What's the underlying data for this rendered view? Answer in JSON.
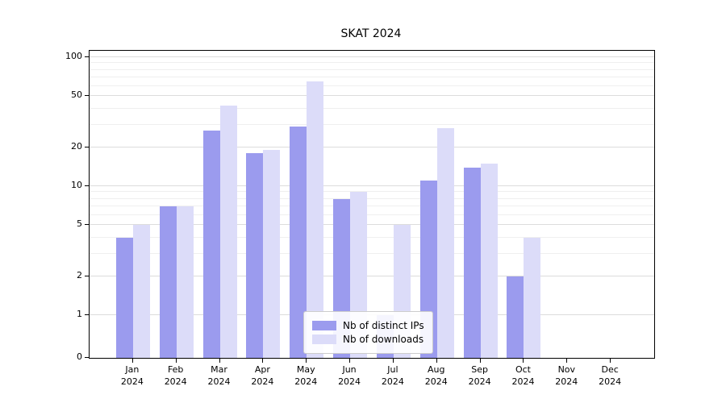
{
  "title": "SKAT 2024",
  "chart_data": {
    "type": "bar",
    "title": "SKAT 2024",
    "months": [
      "Jan",
      "Feb",
      "Mar",
      "Apr",
      "May",
      "Jun",
      "Jul",
      "Aug",
      "Sep",
      "Oct",
      "Nov",
      "Dec"
    ],
    "year": "2024",
    "series": [
      {
        "name": "Nb of distinct IPs",
        "color": "#9b9bee",
        "values": [
          4,
          7,
          27,
          18,
          29,
          8,
          1,
          11,
          14,
          2,
          0,
          0
        ]
      },
      {
        "name": "Nb of downloads",
        "color": "#dcdcf9",
        "values": [
          5,
          7,
          42,
          19,
          65,
          9,
          5,
          28,
          15,
          4,
          0,
          0
        ]
      }
    ],
    "y_ticks": [
      0,
      1,
      2,
      5,
      10,
      20,
      50,
      100
    ],
    "y_minor_ticks": [
      3,
      4,
      6,
      7,
      8,
      9,
      30,
      40,
      60,
      70,
      80,
      90
    ],
    "scale": "log",
    "ylim": [
      0,
      100
    ],
    "grid": true,
    "legend_position": "lower center",
    "axis_color": "#000000",
    "grid_color": "#dcdcdc"
  }
}
